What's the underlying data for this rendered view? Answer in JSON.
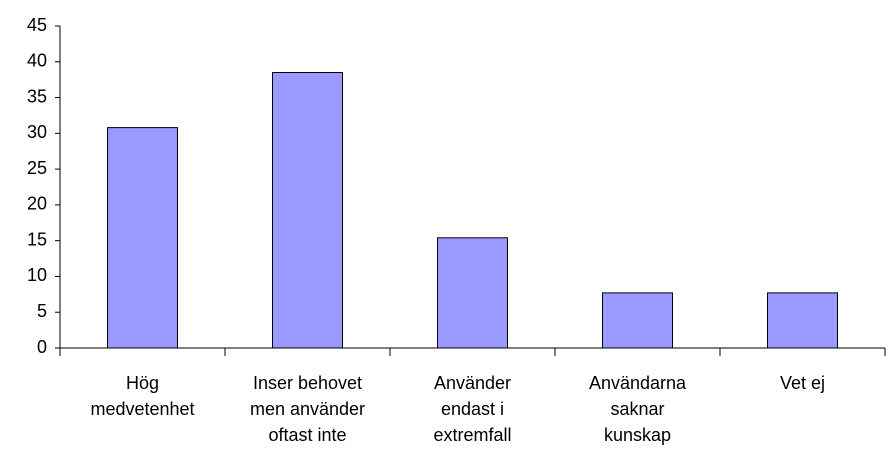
{
  "chart_data": {
    "type": "bar",
    "categories": [
      "Hög\nmedvetenhet",
      "Inser behovet\nmen använder\noftast inte",
      "Använder\nendast i\nextremfall",
      "Användarna\nsaknar\nkunskap",
      "Vet ej"
    ],
    "values": [
      30.8,
      38.5,
      15.4,
      7.7,
      7.7
    ],
    "color": "#9999ff",
    "ylim": [
      0,
      45
    ],
    "yticks": [
      0,
      5,
      10,
      15,
      20,
      25,
      30,
      35,
      40,
      45
    ],
    "grid": false
  }
}
